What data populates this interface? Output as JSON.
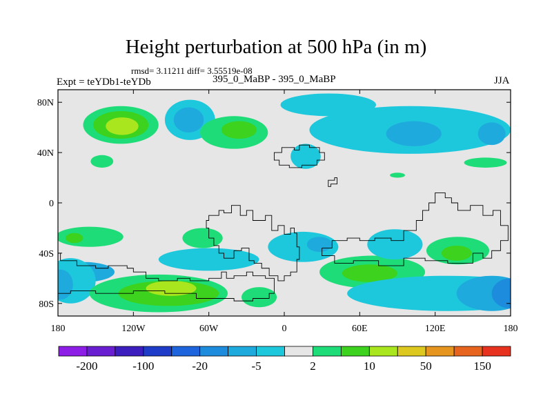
{
  "header": {
    "title": "Height perturbation at 500 hPa (in m)",
    "rmsd_line": "rmsd= 3.11211 diff= 3.55519e-08",
    "experiment": "Expt = teYDb1-teYDb",
    "runs": "395_0_MaBP - 395_0_MaBP",
    "season": "JJA"
  },
  "chart_data": {
    "type": "heatmap",
    "title": "Height perturbation at 500 hPa (in m)",
    "xlabel": "",
    "ylabel": "",
    "xlim": [
      -180,
      180
    ],
    "ylim": [
      -90,
      90
    ],
    "x_ticks": [
      {
        "v": -180,
        "label": "180"
      },
      {
        "v": -120,
        "label": "120W"
      },
      {
        "v": -60,
        "label": "60W"
      },
      {
        "v": 0,
        "label": "0"
      },
      {
        "v": 60,
        "label": "60E"
      },
      {
        "v": 120,
        "label": "120E"
      },
      {
        "v": 180,
        "label": "180"
      }
    ],
    "y_ticks": [
      {
        "v": 80,
        "label": "80N"
      },
      {
        "v": 40,
        "label": "40N"
      },
      {
        "v": 0,
        "label": "0"
      },
      {
        "v": -40,
        "label": "40S"
      },
      {
        "v": -80,
        "label": "80S"
      }
    ],
    "background_color": "#e6e6e6",
    "colorbar": {
      "colors": [
        "#8c1ee6",
        "#6a1ed2",
        "#3c1ebe",
        "#1e3cc8",
        "#1e64dc",
        "#1e8cdc",
        "#1eaadc",
        "#1ec8dc",
        "#e6e6e6",
        "#1edc78",
        "#3cd21e",
        "#aae61e",
        "#dcc81e",
        "#e6961e",
        "#e6641e",
        "#e6321e"
      ],
      "labels": [
        "-200",
        "-100",
        "-20",
        "-5",
        "2",
        "10",
        "50",
        "150"
      ]
    },
    "regions": [
      {
        "name": "positive",
        "level": "2 to 10",
        "color": "#1edc78",
        "lon": -130,
        "lat": 62,
        "rlon": 30,
        "rlat": 15
      },
      {
        "name": "positive",
        "level": "10 to 20",
        "color": "#3cd21e",
        "lon": -130,
        "lat": 62,
        "rlon": 22,
        "rlat": 11
      },
      {
        "name": "positive",
        "level": "20 to 50",
        "color": "#aae61e",
        "lon": -129,
        "lat": 61,
        "rlon": 13,
        "rlat": 7
      },
      {
        "name": "negative",
        "level": "-5 to -2",
        "color": "#1ec8dc",
        "lon": -75,
        "lat": 66,
        "rlon": 20,
        "rlat": 16
      },
      {
        "name": "negative",
        "level": "-10 to -5",
        "color": "#1eaadc",
        "lon": -76,
        "lat": 66,
        "rlon": 12,
        "rlat": 10
      },
      {
        "name": "positive",
        "level": "2 to 10",
        "color": "#1edc78",
        "lon": -40,
        "lat": 56,
        "rlon": 27,
        "rlat": 13
      },
      {
        "name": "positive",
        "level": "10 to 20",
        "color": "#3cd21e",
        "lon": -36,
        "lat": 58,
        "rlon": 14,
        "rlat": 7
      },
      {
        "name": "negative",
        "level": "-5 to -2",
        "color": "#1ec8dc",
        "lon": 17,
        "lat": 37,
        "rlon": 12,
        "rlat": 10
      },
      {
        "name": "negative",
        "level": "-5 to -2",
        "color": "#1ec8dc",
        "lon": 35,
        "lat": 78,
        "rlon": 38,
        "rlat": 9
      },
      {
        "name": "negative",
        "level": "-5 to -2",
        "color": "#1ec8dc",
        "lon": 100,
        "lat": 58,
        "rlon": 80,
        "rlat": 19
      },
      {
        "name": "negative",
        "level": "-10 to -5",
        "color": "#1eaadc",
        "lon": 103,
        "lat": 55,
        "rlon": 22,
        "rlat": 10
      },
      {
        "name": "negative",
        "level": "-10 to -5",
        "color": "#1eaadc",
        "lon": 165,
        "lat": 55,
        "rlon": 11,
        "rlat": 9
      },
      {
        "name": "positive",
        "level": "2 to 10",
        "color": "#1edc78",
        "lon": -145,
        "lat": 33,
        "rlon": 9,
        "rlat": 5
      },
      {
        "name": "positive",
        "level": "2 to 10",
        "color": "#1edc78",
        "lon": 160,
        "lat": 32,
        "rlon": 17,
        "rlat": 4
      },
      {
        "name": "positive",
        "level": "2 to 10",
        "color": "#1edc78",
        "lon": 90,
        "lat": 22,
        "rlon": 6,
        "rlat": 2
      },
      {
        "name": "positive",
        "level": "2 to 10",
        "color": "#1edc78",
        "lon": -155,
        "lat": -27,
        "rlon": 27,
        "rlat": 8
      },
      {
        "name": "positive",
        "level": "10 to 20",
        "color": "#3cd21e",
        "lon": -167,
        "lat": -28,
        "rlon": 7,
        "rlat": 4
      },
      {
        "name": "positive",
        "level": "2 to 10",
        "color": "#1edc78",
        "lon": -65,
        "lat": -28,
        "rlon": 16,
        "rlat": 8
      },
      {
        "name": "negative",
        "level": "-5 to -2",
        "color": "#1ec8dc",
        "lon": -60,
        "lat": -45,
        "rlon": 40,
        "rlat": 9
      },
      {
        "name": "negative",
        "level": "-10 to -5",
        "color": "#1eaadc",
        "lon": -160,
        "lat": -55,
        "rlon": 25,
        "rlat": 8
      },
      {
        "name": "negative",
        "level": "-5 to -2",
        "color": "#1ec8dc",
        "lon": -170,
        "lat": -62,
        "rlon": 20,
        "rlat": 18
      },
      {
        "name": "negative",
        "level": "-10 to -5",
        "color": "#1eaadc",
        "lon": -178,
        "lat": -65,
        "rlon": 10,
        "rlat": 12
      },
      {
        "name": "positive",
        "level": "2 to 10",
        "color": "#1edc78",
        "lon": -100,
        "lat": -72,
        "rlon": 55,
        "rlat": 15
      },
      {
        "name": "positive",
        "level": "10 to 20",
        "color": "#3cd21e",
        "lon": -92,
        "lat": -72,
        "rlon": 40,
        "rlat": 10
      },
      {
        "name": "positive",
        "level": "20 to 50",
        "color": "#aae61e",
        "lon": -90,
        "lat": -68,
        "rlon": 20,
        "rlat": 6
      },
      {
        "name": "positive",
        "level": "2 to 10",
        "color": "#1edc78",
        "lon": -20,
        "lat": -75,
        "rlon": 14,
        "rlat": 8
      },
      {
        "name": "negative",
        "level": "-5 to -2",
        "color": "#1ec8dc",
        "lon": 15,
        "lat": -35,
        "rlon": 28,
        "rlat": 12
      },
      {
        "name": "negative",
        "level": "-10 to -5",
        "color": "#1eaadc",
        "lon": 28,
        "lat": -33,
        "rlon": 10,
        "rlat": 6
      },
      {
        "name": "positive",
        "level": "2 to 10",
        "color": "#1edc78",
        "lon": 70,
        "lat": -55,
        "rlon": 42,
        "rlat": 13
      },
      {
        "name": "positive",
        "level": "10 to 20",
        "color": "#3cd21e",
        "lon": 68,
        "lat": -56,
        "rlon": 22,
        "rlat": 7
      },
      {
        "name": "negative",
        "level": "-5 to -2",
        "color": "#1ec8dc",
        "lon": 88,
        "lat": -33,
        "rlon": 22,
        "rlat": 12
      },
      {
        "name": "positive",
        "level": "2 to 10",
        "color": "#1edc78",
        "lon": 138,
        "lat": -38,
        "rlon": 25,
        "rlat": 11
      },
      {
        "name": "positive",
        "level": "10 to 20",
        "color": "#3cd21e",
        "lon": 137,
        "lat": -40,
        "rlon": 12,
        "rlat": 6
      },
      {
        "name": "negative",
        "level": "-5 to -2",
        "color": "#1ec8dc",
        "lon": 130,
        "lat": -72,
        "rlon": 80,
        "rlat": 14
      },
      {
        "name": "negative",
        "level": "-10 to -5",
        "color": "#1eaadc",
        "lon": 165,
        "lat": -72,
        "rlon": 28,
        "rlat": 14
      },
      {
        "name": "negative",
        "level": "-20 to -10",
        "color": "#1e8cdc",
        "lon": 180,
        "lat": -72,
        "rlon": 15,
        "rlat": 12
      }
    ],
    "coastlines": [
      {
        "name": "landmass-west",
        "pts": [
          [
            -180,
            -40
          ],
          [
            -178,
            -42
          ],
          [
            -178,
            -46
          ],
          [
            -168,
            -46
          ],
          [
            -165,
            -50
          ],
          [
            -150,
            -52
          ],
          [
            -140,
            -50
          ],
          [
            -125,
            -52
          ],
          [
            -120,
            -55
          ],
          [
            -110,
            -60
          ],
          [
            -100,
            -62
          ],
          [
            -85,
            -60
          ],
          [
            -75,
            -62
          ],
          [
            -60,
            -60
          ],
          [
            -50,
            -55
          ],
          [
            -46,
            -60
          ],
          [
            -40,
            -58
          ],
          [
            -30,
            -55
          ],
          [
            -25,
            -58
          ],
          [
            -15,
            -60
          ],
          [
            -8,
            -66
          ],
          [
            -8,
            -72
          ],
          [
            -12,
            -76
          ],
          [
            -25,
            -78
          ],
          [
            -40,
            -76
          ],
          [
            -55,
            -76
          ],
          [
            -70,
            -72
          ],
          [
            -95,
            -70
          ],
          [
            -120,
            -72
          ],
          [
            -150,
            -70
          ],
          [
            -170,
            -72
          ],
          [
            -180,
            -70
          ]
        ]
      },
      {
        "name": "landmass-central",
        "pts": [
          [
            -60,
            -10
          ],
          [
            -52,
            -6
          ],
          [
            -48,
            -8
          ],
          [
            -42,
            -2
          ],
          [
            -35,
            -10
          ],
          [
            -30,
            -6
          ],
          [
            -25,
            -14
          ],
          [
            -15,
            -10
          ],
          [
            -10,
            -22
          ],
          [
            -5,
            -18
          ],
          [
            0,
            -25
          ],
          [
            5,
            -20
          ],
          [
            8,
            -24
          ],
          [
            10,
            -35
          ],
          [
            12,
            -45
          ],
          [
            10,
            -55
          ],
          [
            5,
            -58
          ],
          [
            0,
            -62
          ],
          [
            -5,
            -58
          ],
          [
            -12,
            -52
          ],
          [
            -18,
            -48
          ],
          [
            -24,
            -46
          ],
          [
            -28,
            -36
          ],
          [
            -34,
            -38
          ],
          [
            -40,
            -44
          ],
          [
            -48,
            -40
          ],
          [
            -52,
            -34
          ],
          [
            -56,
            -28
          ],
          [
            -60,
            -20
          ],
          [
            -62,
            -14
          ],
          [
            -60,
            -10
          ]
        ]
      },
      {
        "name": "landmass-east",
        "pts": [
          [
            120,
            8
          ],
          [
            128,
            4
          ],
          [
            133,
            0
          ],
          [
            138,
            -6
          ],
          [
            148,
            -2
          ],
          [
            158,
            -10
          ],
          [
            166,
            -6
          ],
          [
            172,
            -18
          ],
          [
            178,
            -30
          ],
          [
            172,
            -38
          ],
          [
            165,
            -44
          ],
          [
            158,
            -40
          ],
          [
            150,
            -48
          ],
          [
            130,
            -46
          ],
          [
            112,
            -44
          ],
          [
            95,
            -50
          ],
          [
            75,
            -46
          ],
          [
            55,
            -48
          ],
          [
            40,
            -42
          ],
          [
            30,
            -36
          ],
          [
            38,
            -30
          ],
          [
            50,
            -28
          ],
          [
            60,
            -30
          ],
          [
            72,
            -28
          ],
          [
            85,
            -30
          ],
          [
            95,
            -22
          ],
          [
            105,
            -14
          ],
          [
            110,
            -6
          ],
          [
            115,
            0
          ],
          [
            120,
            8
          ]
        ]
      },
      {
        "name": "island-north",
        "pts": [
          [
            -8,
            40
          ],
          [
            -2,
            44
          ],
          [
            8,
            42
          ],
          [
            12,
            46
          ],
          [
            20,
            44
          ],
          [
            28,
            40
          ],
          [
            32,
            34
          ],
          [
            26,
            30
          ],
          [
            14,
            28
          ],
          [
            4,
            30
          ],
          [
            -4,
            34
          ],
          [
            -8,
            40
          ]
        ]
      },
      {
        "name": "island-small",
        "pts": [
          [
            35,
            18
          ],
          [
            40,
            20
          ],
          [
            42,
            15
          ],
          [
            37,
            13
          ],
          [
            35,
            18
          ]
        ]
      }
    ]
  }
}
